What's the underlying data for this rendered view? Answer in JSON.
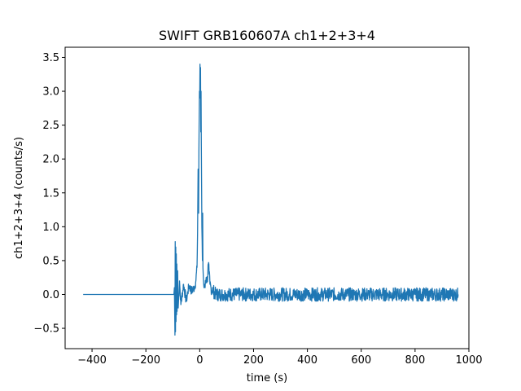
{
  "chart_data": {
    "type": "line",
    "title": "SWIFT GRB160607A ch1+2+3+4",
    "xlabel": "time (s)",
    "ylabel": "ch1+2+3+4 (counts/s)",
    "xlim": [
      -500,
      1000
    ],
    "ylim": [
      -0.8,
      3.65
    ],
    "xticks": [
      -400,
      -200,
      0,
      200,
      400,
      600,
      800,
      1000
    ],
    "xtick_labels": [
      "−400",
      "−200",
      "0",
      "200",
      "400",
      "600",
      "800",
      "1000"
    ],
    "yticks": [
      -0.5,
      0.0,
      0.5,
      1.0,
      1.5,
      2.0,
      2.5,
      3.0,
      3.5
    ],
    "ytick_labels": [
      "−0.5",
      "0.0",
      "0.5",
      "1.0",
      "1.5",
      "2.0",
      "2.5",
      "3.0",
      "3.5"
    ],
    "grid": false,
    "line_color": "#1f77b4",
    "series": [
      {
        "x": [
          -433,
          -96,
          -94,
          -92,
          -91,
          -90,
          -89,
          -88,
          -87,
          -86,
          -85,
          -84,
          -82,
          -80,
          -75,
          -70,
          -60,
          -50,
          -40,
          -30,
          -20,
          -15,
          -10,
          -8,
          -6,
          -4,
          -3,
          -2,
          -1,
          0,
          1,
          2,
          3,
          4,
          5,
          6,
          7,
          8,
          9,
          10,
          11,
          12,
          14,
          16,
          18,
          20,
          24,
          28,
          32,
          35,
          38,
          42,
          50,
          60,
          80,
          100,
          150,
          200,
          300,
          400,
          500,
          600,
          700,
          800,
          900,
          960
        ],
        "y": [
          0.0,
          0.0,
          0.1,
          -0.6,
          0.78,
          -0.55,
          0.7,
          -0.4,
          0.6,
          -0.3,
          0.45,
          -0.25,
          0.35,
          -0.2,
          0.2,
          -0.15,
          0.15,
          -0.1,
          0.13,
          0.05,
          0.1,
          0.18,
          0.4,
          0.9,
          1.85,
          1.2,
          2.1,
          2.6,
          3.0,
          2.9,
          3.4,
          3.1,
          3.35,
          2.4,
          3.0,
          2.2,
          1.6,
          1.0,
          0.8,
          0.5,
          1.2,
          0.4,
          0.2,
          0.1,
          0.15,
          0.1,
          0.25,
          0.2,
          0.45,
          0.3,
          0.15,
          0.1,
          0.05,
          0.0,
          0.0,
          0.0,
          0.0,
          0.0,
          0.0,
          0.0,
          0.0,
          0.0,
          0.0,
          0.0,
          0.0,
          0.0
        ],
        "noise": [
          0.0,
          0.0,
          0.0,
          0.0,
          0.0,
          0.0,
          0.0,
          0.0,
          0.0,
          0.0,
          0.0,
          0.0,
          0.0,
          0.0,
          0.08,
          0.08,
          0.08,
          0.07,
          0.07,
          0.07,
          0.07,
          0.07,
          0.07,
          0.0,
          0.0,
          0.0,
          0.0,
          0.0,
          0.0,
          0.0,
          0.0,
          0.0,
          0.0,
          0.0,
          0.0,
          0.0,
          0.0,
          0.0,
          0.0,
          0.0,
          0.0,
          0.0,
          0.0,
          0.05,
          0.07,
          0.08,
          0.1,
          0.1,
          0.1,
          0.1,
          0.1,
          0.1,
          0.1,
          0.1,
          0.1,
          0.1,
          0.1,
          0.1,
          0.1,
          0.1,
          0.1,
          0.1,
          0.1,
          0.1,
          0.1,
          0.1
        ]
      }
    ]
  }
}
